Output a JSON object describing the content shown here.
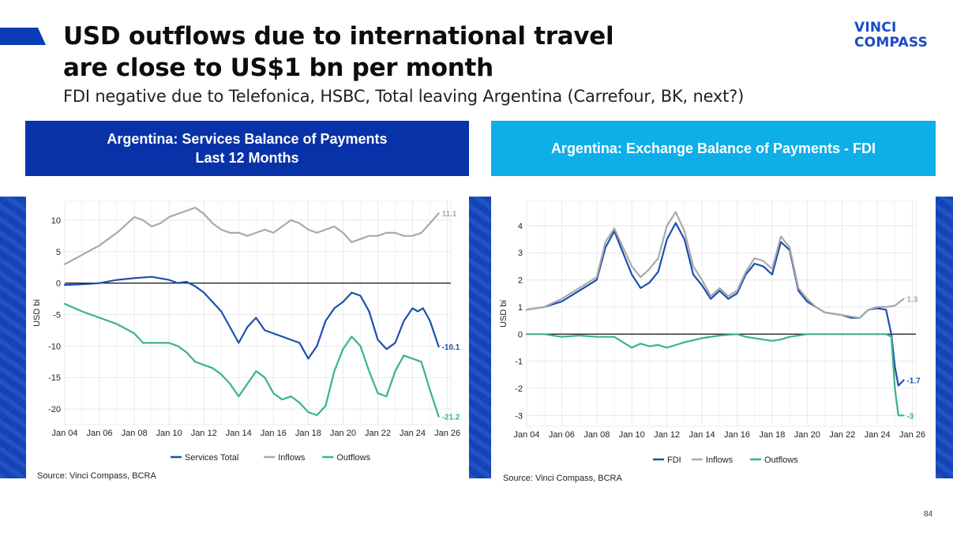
{
  "slide": {
    "title_line1": "USD outflows due to international travel",
    "title_line2": "are close to US$1 bn per month",
    "subtitle": "FDI negative due to Telefonica, HSBC, Total leaving Argentina (Carrefour, BK, next?)",
    "logo_line1": "VINCI",
    "logo_line2": "COMPASS",
    "page_number": "84",
    "colors": {
      "dark_blue": "#0732a8",
      "light_blue": "#0eaee8"
    }
  },
  "left_panel": {
    "header_line1": "Argentina: Services Balance of Payments",
    "header_line2": "Last 12 Months",
    "source": "Source: Vinci Compass, BCRA"
  },
  "right_panel": {
    "header": "Argentina: Exchange Balance of Payments - FDI",
    "source": "Source: Vinci Compass, BCRA"
  },
  "chart_data": [
    {
      "type": "line",
      "ylabel": "USD bi",
      "xlabel": "",
      "xlim": [
        2004,
        2026.2
      ],
      "ylim": [
        -22.5,
        13
      ],
      "yticks": [
        10,
        5,
        0,
        -5,
        -10,
        -15,
        -20
      ],
      "ytick_labels": [
        "10",
        "5",
        "0",
        "-5",
        "-10",
        "-15",
        "-20"
      ],
      "xticks": [
        2004,
        2006,
        2008,
        2010,
        2012,
        2014,
        2016,
        2018,
        2020,
        2022,
        2024,
        2026
      ],
      "xtick_labels": [
        "Jan 04",
        "Jan 06",
        "Jan 08",
        "Jan 10",
        "Jan 12",
        "Jan 14",
        "Jan 16",
        "Jan 18",
        "Jan 20",
        "Jan 22",
        "Jan 24",
        "Jan 26"
      ],
      "grid": true,
      "legend": "bottom",
      "zero_line": true,
      "series": [
        {
          "name": "Services Total",
          "color": "#1c4fb0",
          "x": [
            2004,
            2005,
            2006,
            2007,
            2008,
            2009,
            2010,
            2010.5,
            2011,
            2011.5,
            2012,
            2012.5,
            2013,
            2013.5,
            2014,
            2014.5,
            2015,
            2015.5,
            2016,
            2016.5,
            2017,
            2017.5,
            2018,
            2018.5,
            2019,
            2019.5,
            2020,
            2020.5,
            2021,
            2021.5,
            2022,
            2022.5,
            2023,
            2023.5,
            2024,
            2024.3,
            2024.6,
            2025,
            2025.5
          ],
          "y": [
            -0.3,
            -0.2,
            0,
            0.5,
            0.8,
            1,
            0.5,
            0,
            0.2,
            -0.5,
            -1.5,
            -3,
            -4.5,
            -7,
            -9.5,
            -7,
            -5.5,
            -7.5,
            -8,
            -8.5,
            -9,
            -9.5,
            -12,
            -10,
            -6,
            -4,
            -3,
            -1.5,
            -2,
            -4.5,
            -9,
            -10.5,
            -9.5,
            -6,
            -4,
            -4.5,
            -4,
            -6,
            -10.1
          ],
          "end_label": "-10.1"
        },
        {
          "name": "Inflows",
          "color": "#a9a9a9",
          "x": [
            2004,
            2005,
            2006,
            2007,
            2008,
            2008.5,
            2009,
            2009.5,
            2010,
            2010.5,
            2011,
            2011.5,
            2012,
            2012.5,
            2013,
            2013.5,
            2014,
            2014.5,
            2015,
            2015.5,
            2016,
            2016.5,
            2017,
            2017.5,
            2018,
            2018.5,
            2019,
            2019.5,
            2020,
            2020.5,
            2021,
            2021.5,
            2022,
            2022.5,
            2023,
            2023.5,
            2024,
            2024.5,
            2025,
            2025.5
          ],
          "y": [
            3,
            4.5,
            6,
            8,
            10.5,
            10,
            9,
            9.5,
            10.5,
            11,
            11.5,
            12,
            11,
            9.5,
            8.5,
            8,
            8,
            7.5,
            8,
            8.5,
            8,
            9,
            10,
            9.5,
            8.5,
            8,
            8.5,
            9,
            8,
            6.5,
            7,
            7.5,
            7.5,
            8,
            8,
            7.5,
            7.5,
            8,
            9.5,
            11.1
          ],
          "end_label": "11.1"
        },
        {
          "name": "Outflows",
          "color": "#3ab486",
          "x": [
            2004,
            2005,
            2006,
            2007,
            2008,
            2008.5,
            2009,
            2009.5,
            2010,
            2010.5,
            2011,
            2011.5,
            2012,
            2012.5,
            2013,
            2013.5,
            2014,
            2014.5,
            2015,
            2015.5,
            2016,
            2016.5,
            2017,
            2017.5,
            2018,
            2018.5,
            2019,
            2019.5,
            2020,
            2020.5,
            2021,
            2021.5,
            2022,
            2022.5,
            2023,
            2023.5,
            2024,
            2024.5,
            2025,
            2025.5
          ],
          "y": [
            -3.3,
            -4.5,
            -5.5,
            -6.5,
            -8,
            -9.5,
            -9.5,
            -9.5,
            -9.5,
            -10,
            -11,
            -12.5,
            -13,
            -13.5,
            -14.5,
            -16,
            -18,
            -16,
            -14,
            -15,
            -17.5,
            -18.5,
            -18,
            -19,
            -20.5,
            -21,
            -19.5,
            -14,
            -10.5,
            -8.5,
            -10,
            -14,
            -17.5,
            -18,
            -14,
            -11.5,
            -12,
            -12.5,
            -17,
            -21.2
          ],
          "end_label": "-21.2"
        }
      ]
    },
    {
      "type": "line",
      "ylabel": "USD bi",
      "xlabel": "",
      "xlim": [
        2004,
        2026.2
      ],
      "ylim": [
        -3.4,
        4.9
      ],
      "yticks": [
        4,
        3,
        2,
        1,
        0,
        -1,
        -2,
        -3
      ],
      "ytick_labels": [
        "4",
        "3",
        "2",
        "1",
        "0",
        "-1",
        "-2",
        "-3"
      ],
      "xticks": [
        2004,
        2006,
        2008,
        2010,
        2012,
        2014,
        2016,
        2018,
        2020,
        2022,
        2024,
        2026
      ],
      "xtick_labels": [
        "Jan 04",
        "Jan 06",
        "Jan 08",
        "Jan 10",
        "Jan 12",
        "Jan 14",
        "Jan 16",
        "Jan 18",
        "Jan 20",
        "Jan 22",
        "Jan 24",
        "Jan 26"
      ],
      "grid": true,
      "legend": "bottom",
      "zero_line": true,
      "series": [
        {
          "name": "FDI",
          "color": "#1c4fb0",
          "x": [
            2004,
            2005,
            2006,
            2007,
            2008,
            2008.5,
            2009,
            2009.5,
            2010,
            2010.5,
            2011,
            2011.5,
            2012,
            2012.5,
            2013,
            2013.5,
            2014,
            2014.5,
            2015,
            2015.5,
            2016,
            2016.5,
            2017,
            2017.5,
            2018,
            2018.5,
            2019,
            2019.5,
            2020,
            2020.5,
            2021,
            2021.5,
            2022,
            2022.5,
            2023,
            2023.5,
            2024,
            2024.5,
            2024.8,
            2025,
            2025.2,
            2025.5
          ],
          "y": [
            0.9,
            1,
            1.2,
            1.6,
            2,
            3.2,
            3.8,
            3,
            2.2,
            1.7,
            1.9,
            2.3,
            3.5,
            4.1,
            3.5,
            2.2,
            1.8,
            1.3,
            1.6,
            1.3,
            1.5,
            2.2,
            2.6,
            2.5,
            2.2,
            3.4,
            3.1,
            1.6,
            1.2,
            1,
            0.8,
            0.75,
            0.7,
            0.6,
            0.6,
            0.9,
            0.95,
            0.9,
            0,
            -1.2,
            -1.9,
            -1.7
          ],
          "end_label": "-1.7"
        },
        {
          "name": "Inflows",
          "color": "#a9a9a9",
          "x": [
            2004,
            2005,
            2006,
            2007,
            2008,
            2008.5,
            2009,
            2009.5,
            2010,
            2010.5,
            2011,
            2011.5,
            2012,
            2012.5,
            2013,
            2013.5,
            2014,
            2014.5,
            2015,
            2015.5,
            2016,
            2016.5,
            2017,
            2017.5,
            2018,
            2018.5,
            2019,
            2019.5,
            2020,
            2020.5,
            2021,
            2021.5,
            2022,
            2022.5,
            2023,
            2023.5,
            2024,
            2024.5,
            2025,
            2025.5
          ],
          "y": [
            0.9,
            1,
            1.3,
            1.7,
            2.1,
            3.4,
            3.9,
            3.2,
            2.5,
            2.1,
            2.4,
            2.8,
            4,
            4.5,
            3.8,
            2.5,
            2,
            1.4,
            1.7,
            1.4,
            1.6,
            2.3,
            2.8,
            2.7,
            2.4,
            3.6,
            3.2,
            1.7,
            1.3,
            1,
            0.8,
            0.75,
            0.7,
            0.65,
            0.6,
            0.9,
            1,
            1,
            1.05,
            1.3
          ],
          "end_label": "1.3"
        },
        {
          "name": "Outflows",
          "color": "#3ab486",
          "x": [
            2004,
            2005,
            2006,
            2007,
            2008,
            2009,
            2009.5,
            2010,
            2010.5,
            2011,
            2011.5,
            2012,
            2012.5,
            2013,
            2014,
            2015,
            2016,
            2016.5,
            2017,
            2017.5,
            2018,
            2018.5,
            2019,
            2020,
            2021,
            2022,
            2023,
            2024,
            2024.5,
            2024.8,
            2025,
            2025.2,
            2025.5
          ],
          "y": [
            0,
            0,
            -0.1,
            -0.05,
            -0.1,
            -0.1,
            -0.3,
            -0.5,
            -0.35,
            -0.45,
            -0.4,
            -0.5,
            -0.4,
            -0.3,
            -0.15,
            -0.05,
            0,
            -0.1,
            -0.15,
            -0.2,
            -0.25,
            -0.2,
            -0.1,
            0,
            0,
            0,
            0,
            0,
            0,
            -0.1,
            -2,
            -3,
            -3
          ],
          "end_label": "-3"
        }
      ]
    }
  ]
}
